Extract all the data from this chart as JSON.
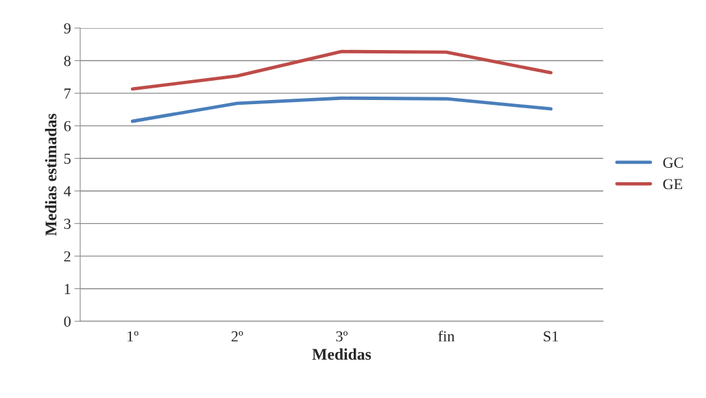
{
  "chart_data": {
    "type": "line",
    "xlabel": "Medidas",
    "ylabel": "Medias estimadas",
    "categories": [
      "1º",
      "2º",
      "3º",
      "fin",
      "S1"
    ],
    "series": [
      {
        "name": "GC",
        "color": "#4a7ebb",
        "values": [
          6.14,
          6.69,
          6.85,
          6.83,
          6.52
        ]
      },
      {
        "name": "GE",
        "color": "#be4b48",
        "values": [
          7.13,
          7.53,
          8.28,
          8.26,
          7.63
        ]
      }
    ],
    "ylim": [
      0,
      9
    ],
    "yticks": [
      0,
      1,
      2,
      3,
      4,
      5,
      6,
      7,
      8,
      9
    ],
    "grid": "y",
    "legend": "right",
    "marker": "none",
    "line_style": "solid"
  }
}
